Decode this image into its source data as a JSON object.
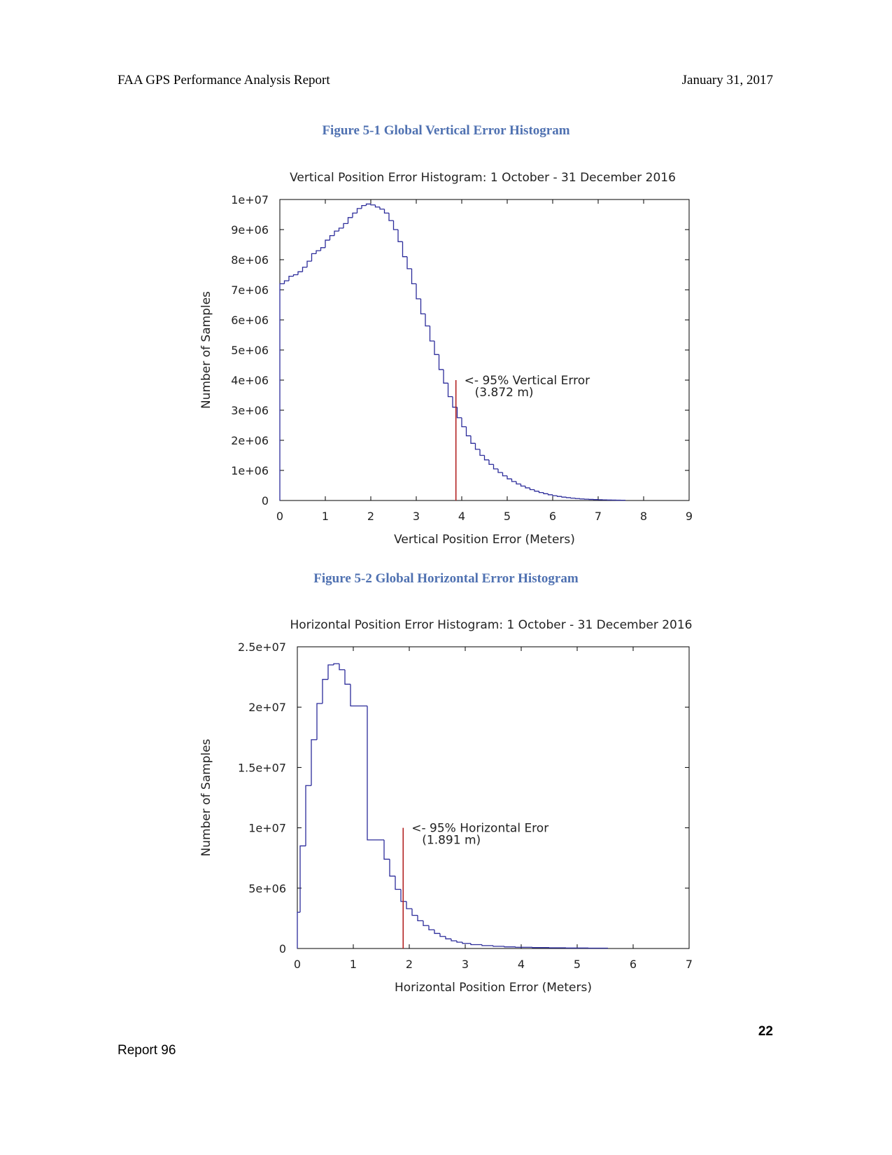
{
  "header": {
    "left": "FAA GPS Performance Analysis Report",
    "right": "January 31, 2017"
  },
  "footer": {
    "left": "Report 96",
    "page_number": "22"
  },
  "chart_data": [
    {
      "caption": "Figure 5-1 Global Vertical Error Histogram",
      "type": "histogram",
      "title": "Vertical Position Error Histogram: 1 October - 31 December 2016",
      "xlabel": "Vertical Position Error (Meters)",
      "ylabel": "Number of Samples",
      "xlim": [
        0,
        9
      ],
      "ylim": [
        0,
        10000000
      ],
      "xticks": [
        "0",
        "1",
        "2",
        "3",
        "4",
        "5",
        "6",
        "7",
        "8",
        "9"
      ],
      "yticks": [
        "0",
        "1e+06",
        "2e+06",
        "3e+06",
        "4e+06",
        "5e+06",
        "6e+06",
        "7e+06",
        "8e+06",
        "9e+06",
        "1e+07"
      ],
      "bin_width": 0.1,
      "values": [
        7200000,
        7300000,
        7450000,
        7500000,
        7600000,
        7750000,
        7950000,
        8200000,
        8300000,
        8400000,
        8650000,
        8800000,
        8950000,
        9050000,
        9200000,
        9400000,
        9550000,
        9700000,
        9800000,
        9850000,
        9820000,
        9750000,
        9680000,
        9550000,
        9300000,
        9000000,
        8600000,
        8100000,
        7700000,
        7200000,
        6700000,
        6200000,
        5800000,
        5300000,
        4850000,
        4350000,
        3900000,
        3450000,
        3100000,
        2750000,
        2450000,
        2150000,
        1900000,
        1700000,
        1500000,
        1350000,
        1200000,
        1050000,
        930000,
        820000,
        720000,
        630000,
        550000,
        480000,
        420000,
        360000,
        310000,
        265000,
        225000,
        190000,
        160000,
        135000,
        112000,
        94000,
        78000,
        64000,
        53000,
        44000,
        36000,
        30000,
        25000,
        20000,
        16000,
        13000,
        10000,
        8000
      ],
      "annotation": {
        "x": 3.872,
        "y_top": 4000000,
        "label": "<- 95% Vertical Error",
        "value_label": "(3.872 m)"
      }
    },
    {
      "caption": "Figure 5-2 Global Horizontal Error Histogram",
      "type": "histogram",
      "title": "Horizontal Position Error Histogram: 1 October - 31 December 2016",
      "xlabel": "Horizontal Position Error (Meters)",
      "ylabel": "Number of Samples",
      "xlim": [
        0,
        7
      ],
      "ylim": [
        0,
        25000000
      ],
      "xticks": [
        "0",
        "1",
        "2",
        "3",
        "4",
        "5",
        "6",
        "7"
      ],
      "yticks": [
        "0",
        "5e+06",
        "1e+07",
        "1.5e+07",
        "2e+07",
        "2.5e+07"
      ],
      "bins": [
        [
          0.0,
          0.05,
          3000000
        ],
        [
          0.05,
          0.15,
          8500000
        ],
        [
          0.15,
          0.25,
          13500000
        ],
        [
          0.25,
          0.35,
          17300000
        ],
        [
          0.35,
          0.45,
          20300000
        ],
        [
          0.45,
          0.55,
          22300000
        ],
        [
          0.55,
          0.65,
          23500000
        ],
        [
          0.65,
          0.75,
          23600000
        ],
        [
          0.75,
          0.85,
          23100000
        ],
        [
          0.85,
          0.95,
          21900000
        ],
        [
          0.95,
          1.25,
          20100000
        ],
        [
          1.25,
          1.55,
          9000000
        ],
        [
          1.55,
          1.65,
          7400000
        ],
        [
          1.65,
          1.75,
          6000000
        ],
        [
          1.75,
          1.85,
          4900000
        ],
        [
          1.85,
          1.95,
          3900000
        ],
        [
          1.95,
          2.05,
          3300000
        ],
        [
          2.05,
          2.15,
          2750000
        ],
        [
          2.15,
          2.25,
          2300000
        ],
        [
          2.25,
          2.35,
          1900000
        ],
        [
          2.35,
          2.45,
          1550000
        ],
        [
          2.45,
          2.55,
          1250000
        ],
        [
          2.55,
          2.65,
          1000000
        ],
        [
          2.65,
          2.75,
          800000
        ],
        [
          2.75,
          2.85,
          640000
        ],
        [
          2.85,
          2.95,
          520000
        ],
        [
          2.95,
          3.1,
          420000
        ],
        [
          3.1,
          3.3,
          320000
        ],
        [
          3.3,
          3.5,
          240000
        ],
        [
          3.5,
          3.7,
          180000
        ],
        [
          3.7,
          3.9,
          135000
        ],
        [
          3.9,
          4.2,
          100000
        ],
        [
          4.2,
          4.5,
          75000
        ],
        [
          4.5,
          4.8,
          55000
        ],
        [
          4.8,
          5.2,
          40000
        ],
        [
          5.2,
          5.55,
          28000
        ]
      ],
      "annotation": {
        "x": 1.891,
        "y_top": 10000000,
        "label": "<- 95% Horizontal Eror",
        "value_label": "(1.891 m)"
      }
    }
  ]
}
